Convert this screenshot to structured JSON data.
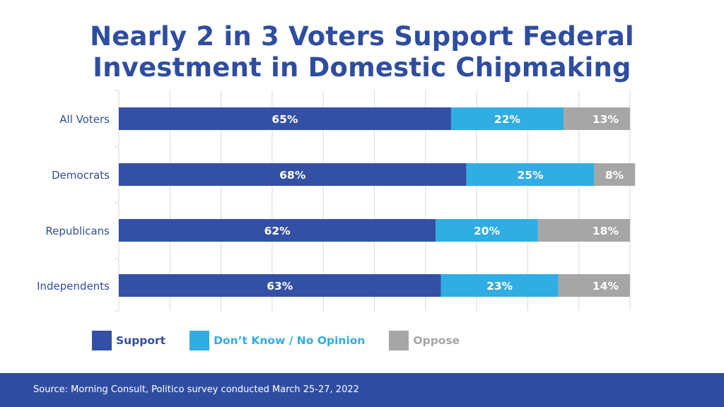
{
  "title": {
    "line1": "Nearly 2 in 3 Voters Support Federal",
    "line2": "Investment in Domestic Chipmaking"
  },
  "colors": {
    "support": "#3350a4",
    "dont_know": "#30ade2",
    "oppose": "#a6a6a6",
    "category_text": "#2f4da0",
    "grid": "#d9d9d9",
    "footer_bg": "#2f4da0"
  },
  "legend": {
    "support": "Support",
    "dont_know": "Don’t Know / No Opinion",
    "oppose": "Oppose"
  },
  "footer": {
    "source": "Source: Morning Consult, Politico survey conducted March 25-27, 2022"
  },
  "chart_data": {
    "type": "bar",
    "orientation": "horizontal",
    "stacked": true,
    "categories": [
      "All Voters",
      "Democrats",
      "Republicans",
      "Independents"
    ],
    "series": [
      {
        "name": "Support",
        "values": [
          65,
          68,
          62,
          63
        ],
        "labels": [
          "65%",
          "68%",
          "62%",
          "63%"
        ]
      },
      {
        "name": "Don’t Know / No Opinion",
        "values": [
          22,
          25,
          20,
          23
        ],
        "labels": [
          "22%",
          "25%",
          "20%",
          "23%"
        ]
      },
      {
        "name": "Oppose",
        "values": [
          13,
          8,
          18,
          14
        ],
        "labels": [
          "13%",
          "8%",
          "18%",
          "14%"
        ]
      }
    ],
    "xlim": [
      0,
      100
    ],
    "grid": true,
    "legend_position": "bottom-left"
  }
}
